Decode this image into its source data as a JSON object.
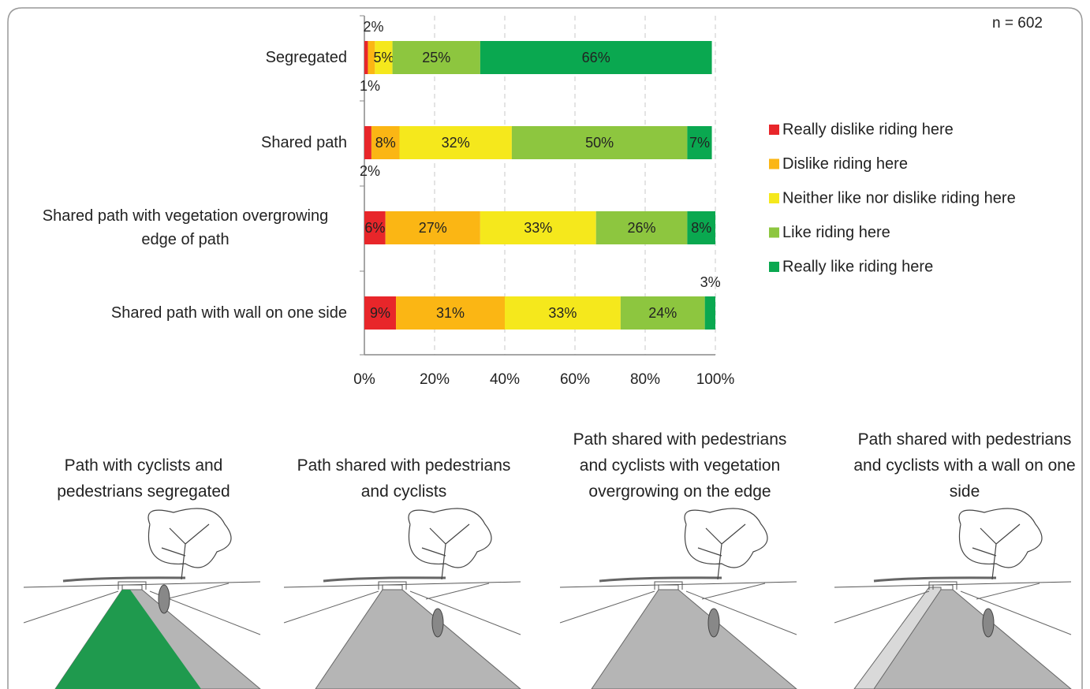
{
  "chart_data": {
    "type": "bar",
    "orientation": "horizontal",
    "stacked": true,
    "note": "n = 602",
    "categories": [
      "Segregated",
      "Shared path",
      "Shared path with vegetation overgrowing edge of path",
      "Shared path with wall on one side"
    ],
    "series": [
      {
        "name": "Really dislike riding here",
        "color": "#e8262a",
        "values": [
          1,
          2,
          6,
          9
        ],
        "value_labels": [
          "1%",
          "2%",
          "6%",
          "9%"
        ]
      },
      {
        "name": "Dislike riding here",
        "color": "#fbb614",
        "values": [
          2,
          8,
          27,
          31
        ],
        "value_labels": [
          "2%",
          "8%",
          "27%",
          "31%"
        ]
      },
      {
        "name": "Neither like nor dislike riding here",
        "color": "#f5e81c",
        "values": [
          5,
          32,
          33,
          33
        ],
        "value_labels": [
          "5%",
          "32%",
          "33%",
          "33%"
        ]
      },
      {
        "name": "Like riding here",
        "color": "#8dc63f",
        "values": [
          25,
          50,
          26,
          24
        ],
        "value_labels": [
          "25%",
          "50%",
          "26%",
          "24%"
        ]
      },
      {
        "name": "Really like riding here",
        "color": "#0aa850",
        "values": [
          66,
          7,
          8,
          3
        ],
        "value_labels": [
          "66%",
          "7%",
          "8%",
          "3%"
        ]
      }
    ],
    "xlim": [
      0,
      100
    ],
    "xticks": [
      {
        "value": 0,
        "label": "0%"
      },
      {
        "value": 20,
        "label": "20%"
      },
      {
        "value": 40,
        "label": "40%"
      },
      {
        "value": 60,
        "label": "60%"
      },
      {
        "value": 80,
        "label": "80%"
      },
      {
        "value": 100,
        "label": "100%"
      }
    ],
    "grid": true,
    "legend": "right"
  },
  "illustrations": {
    "captions": [
      "Path with cyclists and pedestrians segregated",
      "Path shared with pedestrians and cyclists",
      "Path shared with pedestrians and cyclists with vegetation overgrowing on the edge",
      "Path shared with pedestrians and cyclists with a wall on one side"
    ]
  }
}
